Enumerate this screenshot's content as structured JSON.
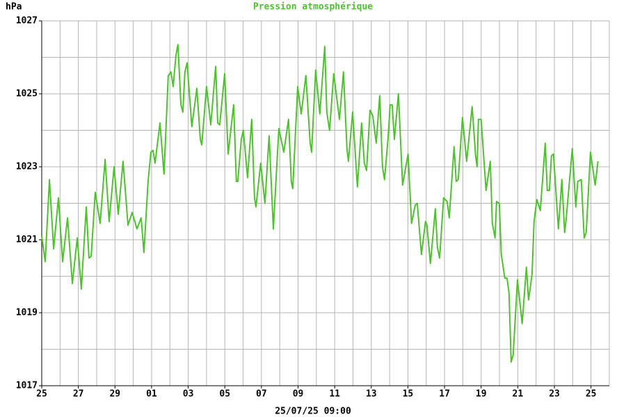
{
  "chart_data": {
    "type": "line",
    "title": "Pression atmosphérique",
    "ylabel": "hPa",
    "xlabel": "25/07/25 09:00",
    "title_color": "#4ec12e",
    "grid": true,
    "xlim": [
      0,
      31
    ],
    "ylim": [
      1017,
      1027
    ],
    "yticks": [
      1017,
      1019,
      1021,
      1023,
      1025,
      1027
    ],
    "yminor": [
      1018,
      1020,
      1022,
      1024,
      1026
    ],
    "xticks": [
      {
        "value": 0,
        "label": "25"
      },
      {
        "value": 2,
        "label": "27"
      },
      {
        "value": 4,
        "label": "29"
      },
      {
        "value": 6,
        "label": "01"
      },
      {
        "value": 8,
        "label": "03"
      },
      {
        "value": 10,
        "label": "05"
      },
      {
        "value": 12,
        "label": "07"
      },
      {
        "value": 14,
        "label": "09"
      },
      {
        "value": 16,
        "label": "11"
      },
      {
        "value": 18,
        "label": "13"
      },
      {
        "value": 20,
        "label": "15"
      },
      {
        "value": 22,
        "label": "17"
      },
      {
        "value": 24,
        "label": "19"
      },
      {
        "value": 26,
        "label": "21"
      },
      {
        "value": 28,
        "label": "23"
      },
      {
        "value": 30,
        "label": "25"
      }
    ],
    "xminor": [
      1,
      3,
      5,
      7,
      9,
      11,
      13,
      15,
      17,
      19,
      21,
      23,
      25,
      27,
      29
    ],
    "series": [
      {
        "color": "#4ec12e",
        "x": [
          0,
          0.19,
          0.42,
          0.65,
          0.91,
          1.14,
          1.41,
          1.67,
          1.94,
          2.16,
          2.43,
          2.58,
          2.7,
          2.92,
          3.19,
          3.46,
          3.68,
          3.95,
          4.18,
          4.44,
          4.71,
          4.94,
          5.2,
          5.43,
          5.58,
          5.81,
          5.96,
          6.08,
          6.19,
          6.46,
          6.68,
          6.91,
          7.06,
          7.18,
          7.33,
          7.44,
          7.6,
          7.71,
          7.82,
          7.94,
          8.2,
          8.47,
          8.66,
          8.74,
          9.0,
          9.23,
          9.5,
          9.61,
          9.72,
          9.99,
          10.18,
          10.48,
          10.63,
          10.71,
          10.9,
          11.01,
          11.24,
          11.47,
          11.62,
          11.7,
          11.96,
          12.19,
          12.42,
          12.65,
          12.95,
          13.22,
          13.48,
          13.63,
          13.71,
          13.98,
          14.17,
          14.43,
          14.66,
          14.74,
          14.96,
          15.19,
          15.46,
          15.57,
          15.72,
          15.95,
          16.26,
          16.48,
          16.67,
          16.75,
          16.98,
          17.24,
          17.47,
          17.62,
          17.74,
          17.93,
          18.08,
          18.27,
          18.46,
          18.61,
          18.72,
          18.91,
          19.03,
          19.14,
          19.26,
          19.48,
          19.71,
          20.01,
          20.2,
          20.4,
          20.51,
          20.74,
          20.96,
          21.04,
          21.23,
          21.5,
          21.61,
          21.73,
          21.95,
          22.14,
          22.26,
          22.52,
          22.64,
          22.75,
          22.98,
          23.21,
          23.51,
          23.7,
          23.78,
          23.85,
          24.0,
          24.27,
          24.5,
          24.61,
          24.76,
          24.84,
          24.99,
          25.1,
          25.29,
          25.41,
          25.52,
          25.64,
          25.75,
          25.98,
          26.09,
          26.24,
          26.47,
          26.59,
          26.78,
          26.89,
          27.04,
          27.23,
          27.5,
          27.61,
          27.73,
          27.84,
          27.95,
          28.22,
          28.41,
          28.56,
          28.64,
          28.98,
          29.17,
          29.28,
          29.47,
          29.63,
          29.74,
          29.97,
          30.23,
          30.38
        ],
        "values": [
          1021.1,
          1020.4,
          1022.65,
          1020.75,
          1022.15,
          1020.4,
          1021.6,
          1019.8,
          1021.05,
          1019.65,
          1021.9,
          1020.5,
          1020.55,
          1022.3,
          1021.45,
          1023.2,
          1021.5,
          1023,
          1021.7,
          1023.15,
          1021.4,
          1021.75,
          1021.3,
          1021.6,
          1020.65,
          1022.6,
          1023.4,
          1023.45,
          1023.1,
          1024.2,
          1022.8,
          1025.5,
          1025.6,
          1025.2,
          1026.05,
          1026.35,
          1024.7,
          1024.5,
          1025.6,
          1025.85,
          1024.1,
          1025.15,
          1023.75,
          1023.6,
          1025.2,
          1024.15,
          1025.75,
          1024.2,
          1024.15,
          1025.55,
          1023.35,
          1024.7,
          1022.6,
          1022.6,
          1023.75,
          1024,
          1022.7,
          1024.3,
          1022.15,
          1021.9,
          1023.1,
          1022,
          1023.85,
          1021.3,
          1024.05,
          1023.4,
          1024.3,
          1022.6,
          1022.4,
          1025.2,
          1024.45,
          1025.5,
          1023.65,
          1023.4,
          1025.65,
          1024.45,
          1026.3,
          1024.5,
          1024,
          1025.55,
          1024.3,
          1025.6,
          1023.5,
          1023.15,
          1024.5,
          1022.45,
          1024.2,
          1023.1,
          1022.9,
          1024.55,
          1024.4,
          1023.65,
          1024.95,
          1023,
          1022.65,
          1023.75,
          1024.7,
          1024.7,
          1023.75,
          1025,
          1022.5,
          1023.35,
          1021.45,
          1021.95,
          1022,
          1020.6,
          1021.5,
          1021.4,
          1020.35,
          1021.85,
          1020.8,
          1020.5,
          1022.15,
          1022.05,
          1021.6,
          1023.55,
          1022.6,
          1022.65,
          1024.35,
          1023.15,
          1024.65,
          1023.3,
          1023,
          1024.3,
          1024.3,
          1022.35,
          1023.15,
          1021.45,
          1021.05,
          1022.05,
          1022,
          1020.6,
          1019.95,
          1019.95,
          1019.55,
          1017.65,
          1017.85,
          1019.9,
          1019.4,
          1018.7,
          1020.25,
          1019.35,
          1020.05,
          1021.5,
          1022.1,
          1021.8,
          1023.65,
          1022.35,
          1022.35,
          1023.3,
          1023.35,
          1021.3,
          1022.65,
          1021.2,
          1021.55,
          1023.5,
          1021.9,
          1022.6,
          1022.65,
          1021.05,
          1021.2,
          1023.4,
          1022.5,
          1023.15
        ]
      }
    ]
  }
}
